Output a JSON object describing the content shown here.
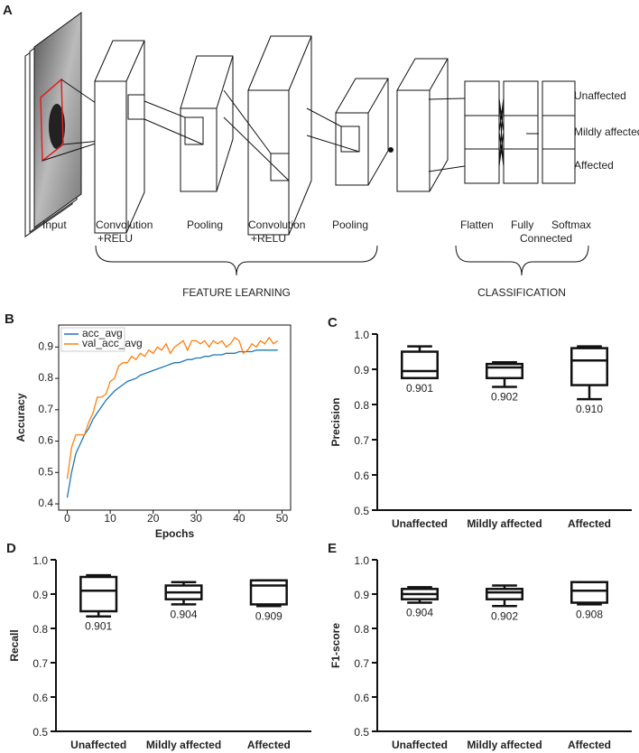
{
  "panel_a": {
    "label": "A",
    "layers": [
      [
        "Input"
      ],
      [
        "Convolution",
        "+RELU"
      ],
      [
        "Pooling"
      ],
      [
        "Convolution",
        "+RELU"
      ],
      [
        "Pooling"
      ],
      [
        "Flatten"
      ],
      [
        "Fully",
        "Connected"
      ],
      [
        "Softmax"
      ]
    ],
    "outputs": [
      "Unaffected",
      "Mildly affected",
      "Affected"
    ],
    "groups": [
      "FEATURE LEARNING",
      "CLASSIFICATION"
    ]
  },
  "chart_data": [
    {
      "type": "line",
      "panel": "B",
      "xlabel": "Epochs",
      "ylabel": "Accuracy",
      "x": [
        0,
        1,
        2,
        3,
        4,
        5,
        6,
        7,
        8,
        9,
        10,
        11,
        12,
        13,
        14,
        15,
        16,
        17,
        18,
        19,
        20,
        21,
        22,
        23,
        24,
        25,
        26,
        27,
        28,
        29,
        30,
        31,
        32,
        33,
        34,
        35,
        36,
        37,
        38,
        39,
        40,
        41,
        42,
        43,
        44,
        45,
        46,
        47,
        48,
        49
      ],
      "series": [
        {
          "name": "acc_avg",
          "color": "#1f77b4",
          "values": [
            0.42,
            0.5,
            0.56,
            0.59,
            0.62,
            0.64,
            0.67,
            0.69,
            0.71,
            0.73,
            0.745,
            0.76,
            0.77,
            0.78,
            0.79,
            0.795,
            0.8,
            0.81,
            0.815,
            0.82,
            0.825,
            0.83,
            0.835,
            0.84,
            0.845,
            0.85,
            0.85,
            0.855,
            0.86,
            0.86,
            0.865,
            0.865,
            0.87,
            0.87,
            0.875,
            0.875,
            0.875,
            0.88,
            0.88,
            0.88,
            0.885,
            0.885,
            0.885,
            0.885,
            0.89,
            0.89,
            0.89,
            0.89,
            0.89,
            0.89
          ]
        },
        {
          "name": "val_acc_avg",
          "color": "#ff7f0e",
          "values": [
            0.48,
            0.58,
            0.62,
            0.62,
            0.62,
            0.66,
            0.69,
            0.74,
            0.74,
            0.75,
            0.79,
            0.8,
            0.84,
            0.85,
            0.85,
            0.87,
            0.86,
            0.88,
            0.87,
            0.89,
            0.88,
            0.9,
            0.89,
            0.91,
            0.88,
            0.9,
            0.91,
            0.92,
            0.89,
            0.92,
            0.92,
            0.91,
            0.92,
            0.9,
            0.92,
            0.91,
            0.92,
            0.9,
            0.91,
            0.93,
            0.92,
            0.88,
            0.89,
            0.91,
            0.9,
            0.92,
            0.91,
            0.93,
            0.91,
            0.92
          ]
        }
      ],
      "xlim": [
        -2,
        52
      ],
      "ylim": [
        0.38,
        0.97
      ],
      "xticks": [
        0,
        10,
        20,
        30,
        40,
        50
      ],
      "yticks": [
        0.4,
        0.5,
        0.6,
        0.7,
        0.8,
        0.9
      ],
      "legend": "upper left"
    },
    {
      "type": "box",
      "panel": "C",
      "ylabel": "Precision",
      "categories": [
        "Unaffected",
        "Mildly affected",
        "Affected"
      ],
      "boxes": [
        {
          "whislo": 0.875,
          "q1": 0.875,
          "med": 0.895,
          "q3": 0.95,
          "whishi": 0.965
        },
        {
          "whislo": 0.85,
          "q1": 0.875,
          "med": 0.905,
          "q3": 0.915,
          "whishi": 0.92
        },
        {
          "whislo": 0.815,
          "q1": 0.855,
          "med": 0.925,
          "q3": 0.96,
          "whishi": 0.965
        }
      ],
      "values": [
        0.901,
        0.902,
        0.91
      ],
      "value_labels": [
        "0.901",
        "0.902",
        "0.910"
      ],
      "ylim": [
        0.5,
        1
      ],
      "yticks": [
        0.5,
        0.6,
        0.7,
        0.8,
        0.9,
        {
          "value": 1,
          "label": "1.0"
        }
      ]
    },
    {
      "type": "box",
      "panel": "D",
      "ylabel": "Recall",
      "categories": [
        "Unaffected",
        "Mildly affected",
        "Affected"
      ],
      "boxes": [
        {
          "whislo": 0.835,
          "q1": 0.85,
          "med": 0.91,
          "q3": 0.95,
          "whishi": 0.955
        },
        {
          "whislo": 0.87,
          "q1": 0.885,
          "med": 0.905,
          "q3": 0.925,
          "whishi": 0.935
        },
        {
          "whislo": 0.865,
          "q1": 0.87,
          "med": 0.925,
          "q3": 0.94,
          "whishi": 0.94
        }
      ],
      "values": [
        0.901,
        0.904,
        0.909
      ],
      "value_labels": [
        "0.901",
        "0.904",
        "0.909"
      ],
      "ylim": [
        0.5,
        1
      ],
      "yticks": [
        0.5,
        0.6,
        0.7,
        0.8,
        0.9,
        {
          "value": 1,
          "label": "1.0"
        }
      ]
    },
    {
      "type": "box",
      "panel": "E",
      "ylabel": "F1-score",
      "categories": [
        "Unaffected",
        "Mildly affected",
        "Affected"
      ],
      "boxes": [
        {
          "whislo": 0.875,
          "q1": 0.885,
          "med": 0.9,
          "q3": 0.915,
          "whishi": 0.92
        },
        {
          "whislo": 0.865,
          "q1": 0.885,
          "med": 0.905,
          "q3": 0.915,
          "whishi": 0.925
        },
        {
          "whislo": 0.87,
          "q1": 0.875,
          "med": 0.91,
          "q3": 0.935,
          "whishi": 0.935
        }
      ],
      "values": [
        0.904,
        0.902,
        0.908
      ],
      "value_labels": [
        "0.904",
        "0.902",
        "0.908"
      ],
      "ylim": [
        0.5,
        1
      ],
      "yticks": [
        0.5,
        0.6,
        0.7,
        0.8,
        0.9,
        {
          "value": 1,
          "label": "1.0"
        }
      ]
    }
  ]
}
